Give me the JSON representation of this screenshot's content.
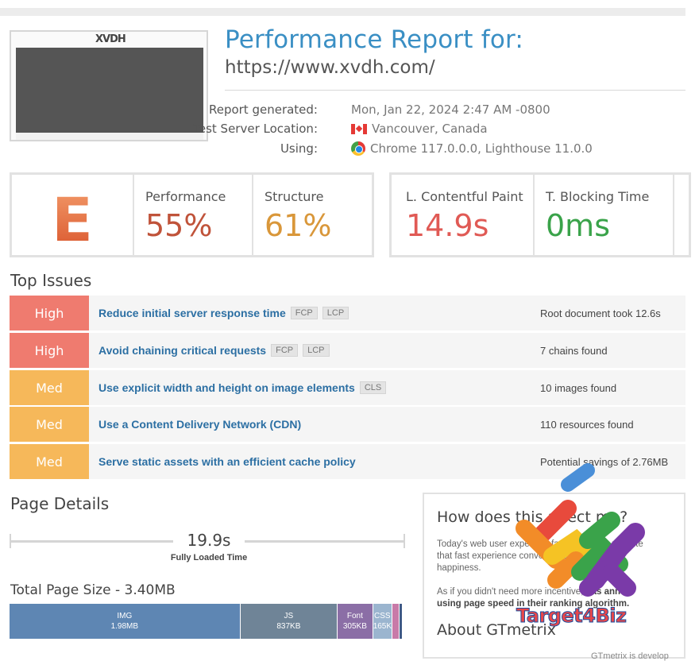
{
  "header": {
    "title": "Performance Report for:",
    "url": "https://www.xvdh.com/",
    "thumb_logo": "XVDH"
  },
  "meta": {
    "generated_label": "Report generated:",
    "generated_value": "Mon, Jan 22, 2024 2:47 AM -0800",
    "location_label": "Test Server Location:",
    "location_value": "Vancouver, Canada",
    "using_label": "Using:",
    "using_value": "Chrome 117.0.0.0, Lighthouse 11.0.0"
  },
  "grades": {
    "grade": "E",
    "performance_label": "Performance",
    "performance_value": "55%",
    "structure_label": "Structure",
    "structure_value": "61%",
    "lcp_label": "L. Contentful Paint",
    "lcp_value": "14.9s",
    "tbt_label": "T. Blocking Time",
    "tbt_value": "0ms"
  },
  "colors": {
    "grade_e": "#e8744a",
    "performance": "#c0533a",
    "structure": "#d9973a",
    "lcp": "#e05a55",
    "tbt": "#3aa34a",
    "high": "#ef7b6f",
    "med": "#f6b85a"
  },
  "top_issues": {
    "heading": "Top Issues",
    "items": [
      {
        "severity": "High",
        "name": "Reduce initial server response time",
        "tags": [
          "FCP",
          "LCP"
        ],
        "result": "Root document took 12.6s"
      },
      {
        "severity": "High",
        "name": "Avoid chaining critical requests",
        "tags": [
          "FCP",
          "LCP"
        ],
        "result": "7 chains found"
      },
      {
        "severity": "Med",
        "name": "Use explicit width and height on image elements",
        "tags": [
          "CLS"
        ],
        "result": "10 images found"
      },
      {
        "severity": "Med",
        "name": "Use a Content Delivery Network (CDN)",
        "tags": [],
        "result": "110 resources found"
      },
      {
        "severity": "Med",
        "name": "Serve static assets with an efficient cache policy",
        "tags": [],
        "result": "Potential savings of 2.76MB"
      }
    ]
  },
  "page_details": {
    "heading": "Page Details",
    "fully_loaded_value": "19.9s",
    "fully_loaded_label": "Fully Loaded Time",
    "total_size_label": "Total Page Size - 3.40MB",
    "breakdown": [
      {
        "type": "IMG",
        "size": "1.98MB",
        "mb": 1.98,
        "color": "#5e86b3"
      },
      {
        "type": "JS",
        "size": "837KB",
        "mb": 0.837,
        "color": "#6f8497"
      },
      {
        "type": "Font",
        "size": "305KB",
        "mb": 0.305,
        "color": "#8b6ea6"
      },
      {
        "type": "CSS",
        "size": "165KB",
        "mb": 0.165,
        "color": "#9bb5cf"
      },
      {
        "type": "",
        "size": "",
        "mb": 0.06,
        "color": "#c87aa8"
      },
      {
        "type": "",
        "size": "",
        "mb": 0.03,
        "color": "#3f5a86"
      }
    ]
  },
  "right_panel": {
    "heading": "How does this affect me?",
    "p1_line1": "Today's web user expects a fast, seamless website",
    "p1_line2": "that fast experience converts visits, conve",
    "p1_line3": "happiness.",
    "p2_line1": "As if you didn't need more incentive,",
    "p2_bold1": " has anno",
    "p2_bold2": "using page speed in their ranking algorithm.",
    "heading2": "About GTmetrix",
    "footer": "GTmetrix is develop"
  },
  "watermark": {
    "text": "Target4Biz"
  }
}
